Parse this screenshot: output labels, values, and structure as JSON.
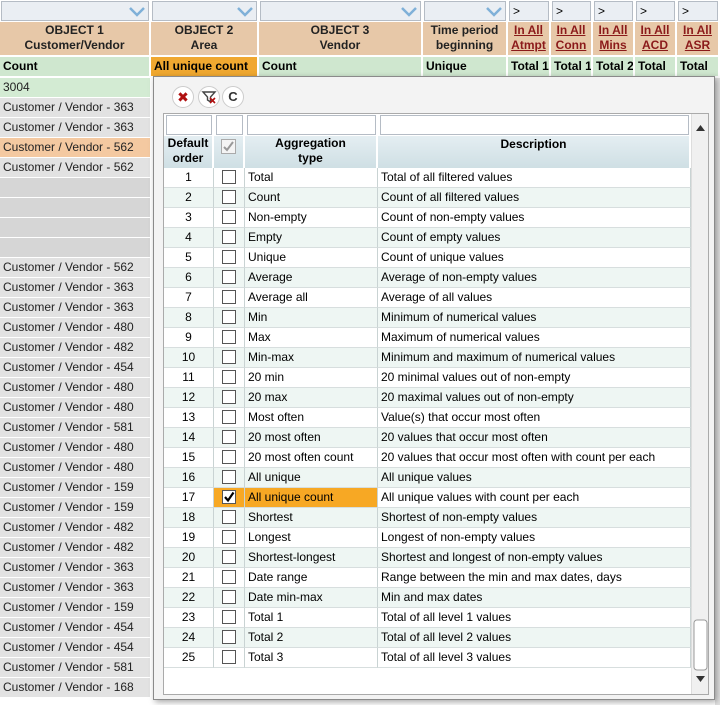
{
  "filters": [
    ">",
    ">",
    ">",
    ">",
    ">"
  ],
  "headers": [
    [
      "OBJECT 1",
      "Customer/Vendor"
    ],
    [
      "OBJECT 2",
      "Area"
    ],
    [
      "OBJECT 3",
      "Vendor"
    ],
    [
      "Time period",
      "beginning"
    ],
    [
      "In All",
      "Atmpt"
    ],
    [
      "In All",
      "Conn"
    ],
    [
      "In All",
      "Mins"
    ],
    [
      "In All",
      "ACD"
    ],
    [
      "In All",
      "ASR"
    ]
  ],
  "summary": [
    "Count",
    "All unique count",
    "Count",
    "Unique",
    "Total 1",
    "Total 1",
    "Total 2",
    "Total",
    "Total"
  ],
  "column1_rows": [
    "3004",
    "Customer / Vendor - 363",
    "Customer / Vendor - 363",
    "Customer / Vendor - 562",
    "Customer / Vendor - 562",
    null,
    null,
    null,
    null,
    "Customer / Vendor - 562",
    "Customer / Vendor - 363",
    "Customer / Vendor - 363",
    "Customer / Vendor - 480",
    "Customer / Vendor - 482",
    "Customer / Vendor - 454",
    "Customer / Vendor - 480",
    "Customer / Vendor - 480",
    "Customer / Vendor - 581",
    "Customer / Vendor - 480",
    "Customer / Vendor - 480",
    "Customer / Vendor - 159",
    "Customer / Vendor - 159",
    "Customer / Vendor - 482",
    "Customer / Vendor - 482",
    "Customer / Vendor - 363",
    "Customer / Vendor - 363",
    "Customer / Vendor - 159",
    "Customer / Vendor - 454",
    "Customer / Vendor - 454",
    "Customer / Vendor - 581",
    "Customer / Vendor - 168"
  ],
  "popup": {
    "toolbar": [
      "✖",
      "C"
    ],
    "headers": {
      "order": [
        "Default",
        "order"
      ],
      "type": [
        "Aggregation",
        "type"
      ],
      "description": "Description"
    },
    "rows": [
      [
        1,
        "Total",
        "Total of all filtered values",
        false
      ],
      [
        2,
        "Count",
        "Count of all filtered values",
        false
      ],
      [
        3,
        "Non-empty",
        "Count of non-empty values",
        false
      ],
      [
        4,
        "Empty",
        "Count of empty values",
        false
      ],
      [
        5,
        "Unique",
        "Count of unique values",
        false
      ],
      [
        6,
        "Average",
        "Average of non-empty values",
        false
      ],
      [
        7,
        "Average all",
        "Average of all values",
        false
      ],
      [
        8,
        "Min",
        "Minimum of numerical values",
        false
      ],
      [
        9,
        "Max",
        "Maximum of numerical values",
        false
      ],
      [
        10,
        "Min-max",
        "Minimum and maximum of numerical values",
        false
      ],
      [
        11,
        "20 min",
        "20 minimal values out of non-empty",
        false
      ],
      [
        12,
        "20 max",
        "20 maximal values out of non-empty",
        false
      ],
      [
        13,
        "Most often",
        "Value(s) that occur most often",
        false
      ],
      [
        14,
        "20 most often",
        "20 values that occur most often",
        false
      ],
      [
        15,
        "20 most often count",
        "20 values that occur most often with count per each",
        false
      ],
      [
        16,
        "All unique",
        "All unique values",
        false
      ],
      [
        17,
        "All unique count",
        "All unique values with count per each",
        true
      ],
      [
        18,
        "Shortest",
        "Shortest of non-empty values",
        false
      ],
      [
        19,
        "Longest",
        "Longest of non-empty values",
        false
      ],
      [
        20,
        "Shortest-longest",
        "Shortest and longest of non-empty values",
        false
      ],
      [
        21,
        "Date range",
        "Range between the min and max dates, days",
        false
      ],
      [
        22,
        "Date min-max",
        "Min and max dates",
        false
      ],
      [
        23,
        "Total 1",
        "Total of all level 1 values",
        false
      ],
      [
        24,
        "Total 2",
        "Total of all level 2 values",
        false
      ],
      [
        25,
        "Total 3",
        "Total of all level 3 values",
        false
      ]
    ]
  }
}
